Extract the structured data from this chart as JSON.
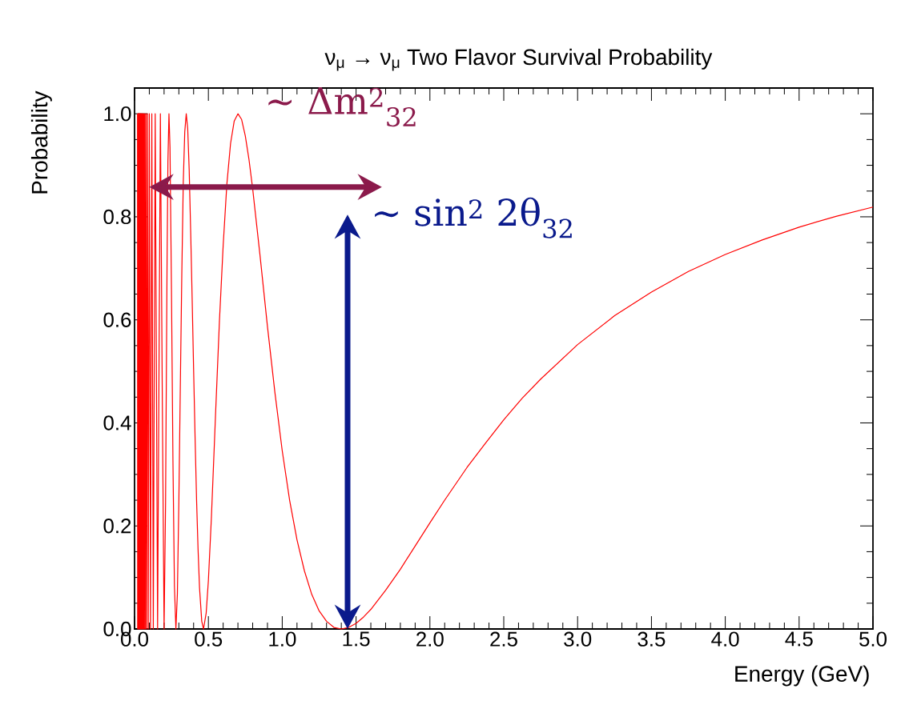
{
  "chart_data": {
    "type": "line",
    "title": "ν$_{μ}$ → ν$_{μ}$ Two Flavor Survival Probability",
    "xlabel": "Energy (GeV)",
    "ylabel": "Probability",
    "annotations": [
      "∼ Δm$^{2}$$_{32}$",
      "∼ sin$^{2}$ 2θ$_{32}$"
    ],
    "xlim": [
      0,
      5
    ],
    "ylim": [
      0,
      1.05
    ],
    "xticks": [
      {
        "value": 0,
        "label": "0.0"
      },
      {
        "value": 0.5,
        "label": "0.5"
      },
      {
        "value": 1,
        "label": "1.0"
      },
      {
        "value": 1.5,
        "label": "1.5"
      },
      {
        "value": 2,
        "label": "2.0"
      },
      {
        "value": 2.5,
        "label": "2.5"
      },
      {
        "value": 3,
        "label": "3.0"
      },
      {
        "value": 3.5,
        "label": "3.5"
      },
      {
        "value": 4,
        "label": "4.0"
      },
      {
        "value": 4.5,
        "label": "4.5"
      },
      {
        "value": 5,
        "label": "5.0"
      }
    ],
    "yticks": [
      {
        "value": 0,
        "label": "0.0"
      },
      {
        "value": 0.2,
        "label": "0.2"
      },
      {
        "value": 0.4,
        "label": "0.4"
      },
      {
        "value": 0.6,
        "label": "0.6"
      },
      {
        "value": 0.8,
        "label": "0.8"
      },
      {
        "value": 1,
        "label": "1.0"
      }
    ],
    "series": [
      {
        "color": "#ff0000",
        "x": [
          0.02,
          0.021,
          0.022,
          0.023,
          0.024,
          0.025,
          0.026,
          0.027,
          0.028,
          0.029,
          0.03,
          0.031,
          0.032,
          0.033,
          0.034,
          0.035,
          0.036,
          0.037,
          0.038,
          0.039,
          0.04,
          0.041,
          0.042,
          0.044,
          0.045,
          0.047,
          0.048,
          0.05,
          0.052,
          0.054,
          0.056,
          0.058,
          0.061,
          0.064,
          0.067,
          0.07,
          0.074,
          0.078,
          0.082,
          0.088,
          0.093,
          0.1,
          0.108,
          0.117,
          0.127,
          0.14,
          0.156,
          0.175,
          0.187,
          0.2,
          0.21,
          0.22,
          0.226,
          0.233,
          0.24,
          0.25,
          0.26,
          0.27,
          0.28,
          0.29,
          0.3,
          0.31,
          0.32,
          0.33,
          0.34,
          0.35,
          0.36,
          0.37,
          0.38,
          0.39,
          0.4,
          0.41,
          0.42,
          0.43,
          0.44,
          0.455,
          0.467,
          0.485,
          0.5,
          0.52,
          0.55,
          0.575,
          0.6,
          0.625,
          0.65,
          0.675,
          0.7,
          0.725,
          0.75,
          0.775,
          0.8,
          0.85,
          0.9,
          0.95,
          1.0,
          1.05,
          1.1,
          1.15,
          1.2,
          1.25,
          1.3,
          1.35,
          1.4,
          1.45,
          1.5,
          1.55,
          1.6,
          1.7,
          1.8,
          1.9,
          2.0,
          2.1,
          2.25,
          2.375,
          2.5,
          2.625,
          2.75,
          3.0,
          3.25,
          3.5,
          3.75,
          4.0,
          4.25,
          4.5,
          4.75,
          5.0
        ],
        "values": [
          1,
          0,
          1,
          0,
          1,
          0,
          1,
          0,
          1,
          0,
          1,
          0,
          1,
          0,
          0,
          1,
          0,
          1,
          0,
          1,
          0,
          1,
          0,
          1,
          0,
          1,
          0,
          1,
          0,
          1,
          0,
          1,
          0,
          1,
          0,
          1,
          0,
          1,
          0,
          1,
          0,
          1,
          0,
          1,
          0,
          1,
          0,
          1,
          0.485,
          0,
          0.246,
          0.704,
          0.907,
          1,
          0.935,
          0.659,
          0.326,
          0.084,
          0,
          0.068,
          0.247,
          0.472,
          0.689,
          0.868,
          0.965,
          1,
          0.971,
          0.891,
          0.772,
          0.642,
          0.502,
          0.371,
          0.25,
          0.155,
          0.08,
          0.015,
          0,
          0.031,
          0.094,
          0.214,
          0.427,
          0.599,
          0.744,
          0.863,
          0.942,
          0.986,
          1,
          0.989,
          0.957,
          0.911,
          0.854,
          0.724,
          0.587,
          0.46,
          0.346,
          0.25,
          0.173,
          0.113,
          0.067,
          0.035,
          0.015,
          0.003,
          0,
          0.003,
          0.011,
          0.023,
          0.038,
          0.075,
          0.116,
          0.161,
          0.206,
          0.25,
          0.313,
          0.36,
          0.406,
          0.448,
          0.485,
          0.552,
          0.608,
          0.654,
          0.694,
          0.727,
          0.755,
          0.78,
          0.801,
          0.819
        ]
      }
    ]
  }
}
